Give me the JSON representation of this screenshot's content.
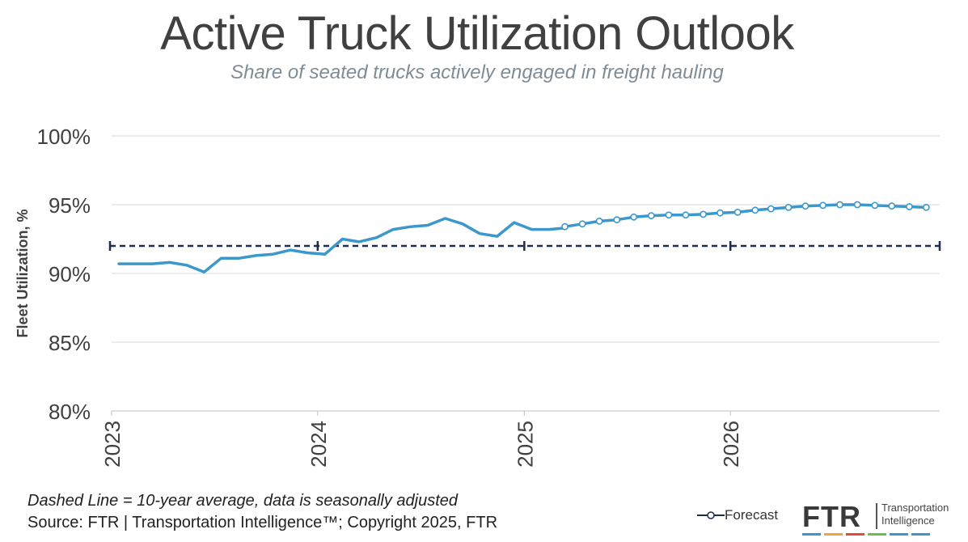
{
  "header": {
    "title": "Active Truck Utilization Outlook",
    "subtitle": "Share of seated trucks actively engaged in freight hauling"
  },
  "footer": {
    "note": "Dashed Line = 10-year average, data is seasonally adjusted",
    "source": "Source: FTR | Transportation Intelligence™; Copyright 2025, FTR"
  },
  "legend": {
    "forecast_label": "Forecast"
  },
  "logo": {
    "name": "FTR",
    "tagline_line1": "Transportation",
    "tagline_line2": "Intelligence"
  },
  "colors": {
    "line": "#3b97cc",
    "average": "#1c2c4f",
    "grid": "#d9d9d9",
    "logo_bars": [
      "#3b97cc",
      "#f2a33a",
      "#e24b3b",
      "#6cbf4a",
      "#3b97cc",
      "#3b97cc"
    ]
  },
  "chart_data": {
    "type": "line",
    "ylabel": "Fleet Utilization, %",
    "ylim": [
      80,
      100
    ],
    "yticks": [
      "80%",
      "85%",
      "90%",
      "95%",
      "100%"
    ],
    "xticks": [
      "2023",
      "2024",
      "2025",
      "2026"
    ],
    "grid": true,
    "legend_position": "bottom-right",
    "average": 92.0,
    "series": [
      {
        "kind": "actual",
        "x": [
          "2023-01",
          "2023-02",
          "2023-03",
          "2023-04",
          "2023-05",
          "2023-06",
          "2023-07",
          "2023-08",
          "2023-09",
          "2023-10",
          "2023-11",
          "2023-12",
          "2024-01",
          "2024-02",
          "2024-03",
          "2024-04",
          "2024-05",
          "2024-06",
          "2024-07",
          "2024-08",
          "2024-09",
          "2024-10",
          "2024-11",
          "2024-12",
          "2025-01",
          "2025-02",
          "2025-03"
        ],
        "values": [
          90.7,
          90.7,
          90.7,
          90.8,
          90.6,
          90.1,
          91.1,
          91.1,
          91.3,
          91.4,
          91.7,
          91.5,
          91.4,
          92.5,
          92.3,
          92.6,
          93.2,
          93.4,
          93.5,
          94.0,
          93.6,
          92.9,
          92.7,
          93.7,
          93.2,
          93.2,
          93.3
        ]
      },
      {
        "kind": "forecast",
        "name": "Forecast",
        "x": [
          "2025-03",
          "2025-04",
          "2025-05",
          "2025-06",
          "2025-07",
          "2025-08",
          "2025-09",
          "2025-10",
          "2025-11",
          "2025-12",
          "2026-01",
          "2026-02",
          "2026-03",
          "2026-04",
          "2026-05",
          "2026-06",
          "2026-07",
          "2026-08",
          "2026-09",
          "2026-10",
          "2026-11",
          "2026-12"
        ],
        "values": [
          93.4,
          93.6,
          93.8,
          93.9,
          94.1,
          94.2,
          94.25,
          94.25,
          94.3,
          94.4,
          94.45,
          94.6,
          94.7,
          94.8,
          94.9,
          94.95,
          95.0,
          95.0,
          94.95,
          94.9,
          94.85,
          94.8
        ]
      }
    ]
  }
}
